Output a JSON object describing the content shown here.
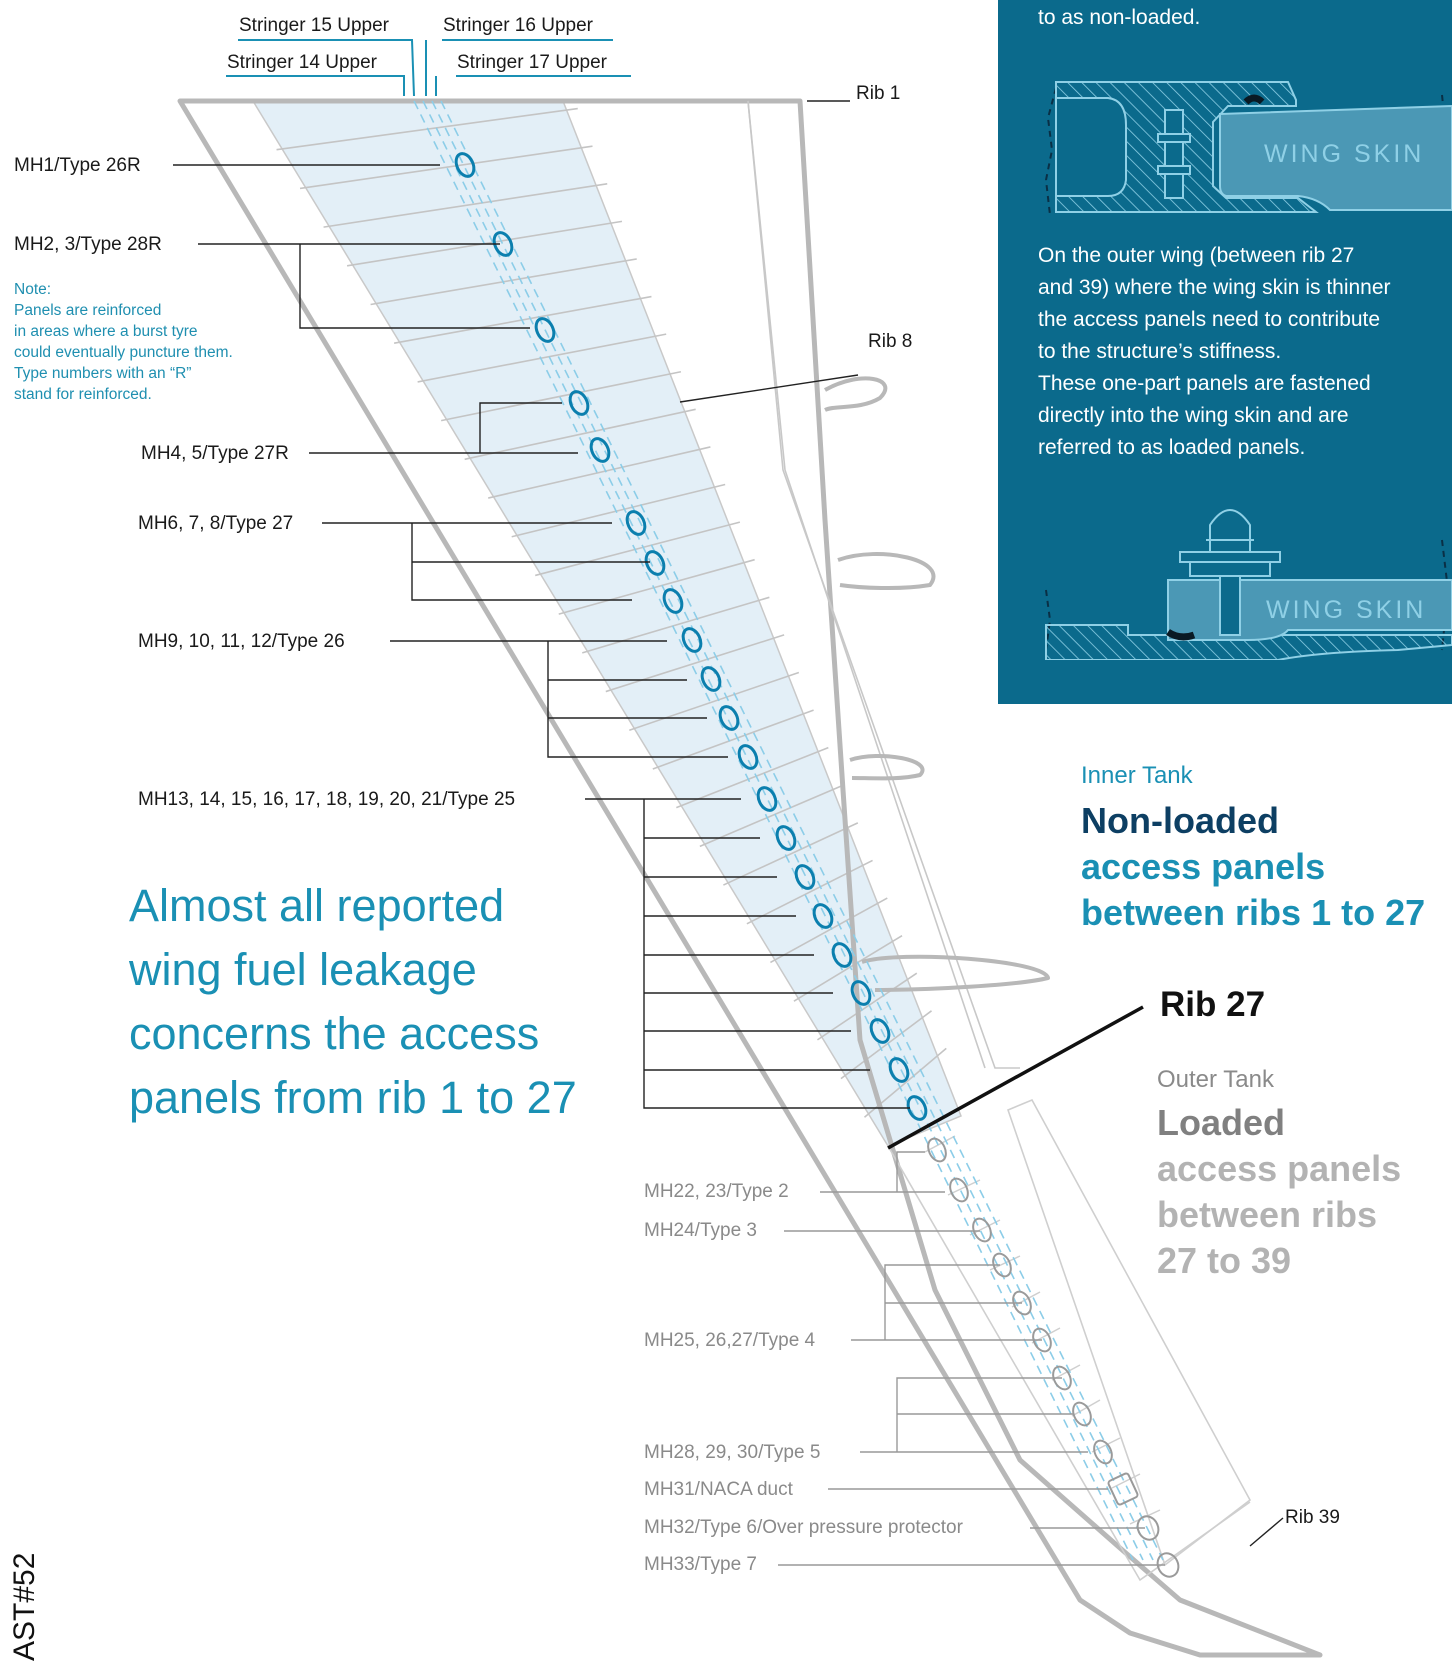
{
  "stringers": {
    "s15": "Stringer 15 Upper",
    "s16": "Stringer 16 Upper",
    "s14": "Stringer 14 Upper",
    "s17": "Stringer 17 Upper"
  },
  "ribs": {
    "rib1": "Rib 1",
    "rib8": "Rib 8",
    "rib27": "Rib 27",
    "rib39": "Rib 39"
  },
  "manholes": {
    "mh1": "MH1/Type 26R",
    "mh2": "MH2, 3/Type 28R",
    "mh4": "MH4, 5/Type 27R",
    "mh6": "MH6, 7, 8/Type 27",
    "mh9": "MH9, 10, 11, 12/Type 26",
    "mh13": "MH13, 14, 15, 16, 17, 18, 19, 20, 21/Type 25",
    "mh22": "MH22, 23/Type 2",
    "mh24": "MH24/Type 3",
    "mh25": "MH25, 26,27/Type 4",
    "mh28": "MH28, 29, 30/Type 5",
    "mh31": "MH31/NACA duct",
    "mh32": "MH32/Type 6/Over pressure protector",
    "mh33": "MH33/Type 7"
  },
  "note": {
    "line1": "Note:",
    "line2": "Panels are reinforced",
    "line3": "in areas where a burst tyre",
    "line4": "could eventually puncture them.",
    "line5": "Type numbers with an “R”",
    "line6": "stand for reinforced."
  },
  "headline": {
    "line1": "Almost all reported",
    "line2": "wing fuel leakage",
    "line3": "concerns the access",
    "line4": "panels from rib 1 to 27"
  },
  "panel": {
    "top_text": "to as non-loaded.",
    "skin_label_1": "WING SKIN",
    "body": [
      "On the outer wing (between rib 27",
      "and 39) where the wing skin is thinner",
      "the access panels need to contribute",
      "to the structure’s stiffness.",
      "These one-part panels are fastened",
      "directly into the wing skin and are",
      "referred to as loaded panels."
    ],
    "skin_label_2": "WING SKIN"
  },
  "inner_tank": {
    "subtitle": "Inner Tank",
    "title_1": "Non-loaded",
    "title_2": "access panels",
    "title_3": "between ribs 1 to 27"
  },
  "outer_tank": {
    "subtitle": "Outer Tank",
    "title_1": "Loaded",
    "title_2": "access panels",
    "title_3": "between ribs",
    "title_4": "27 to 39"
  },
  "doc_id": "AST#52",
  "colors": {
    "accent_blue": "#1a90b4",
    "dark_navy": "#0d3f63",
    "panel_bg": "#0b6a8c",
    "wing_outline": "#b8b8b8",
    "tank_fill": "#e3eff7"
  }
}
